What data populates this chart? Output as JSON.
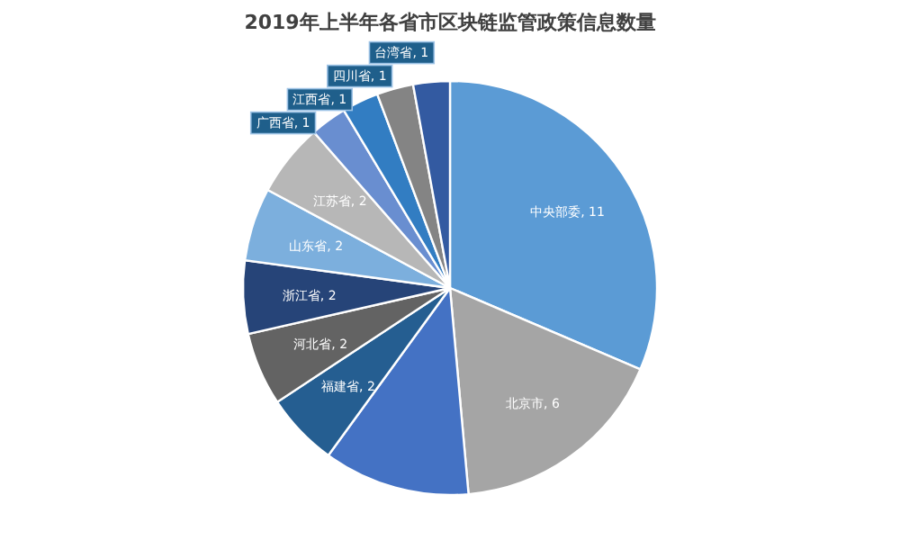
{
  "chart_data": {
    "type": "pie",
    "title": "2019年上半年各省市区块链监管政策信息数量",
    "categories": [
      "中央部委",
      "北京市",
      null,
      "福建省",
      "河北省",
      "浙江省",
      "山东省",
      "江苏省",
      "广西省",
      "江西省",
      "四川省",
      "台湾省"
    ],
    "values": [
      11,
      6,
      4,
      2,
      2,
      2,
      2,
      2,
      1,
      1,
      1,
      1
    ],
    "value_labels": [
      "11",
      "6",
      null,
      "2",
      "2",
      "2",
      "2",
      "2",
      "1",
      "1",
      "1",
      "1"
    ],
    "colors": [
      "#5b9bd5",
      "#a5a5a5",
      "#4472c4",
      "#255e91",
      "#636363",
      "#264478",
      "#7cafdd",
      "#b7b7b7",
      "#698ed0",
      "#327dc2",
      "#848484",
      "#335aa1"
    ]
  }
}
